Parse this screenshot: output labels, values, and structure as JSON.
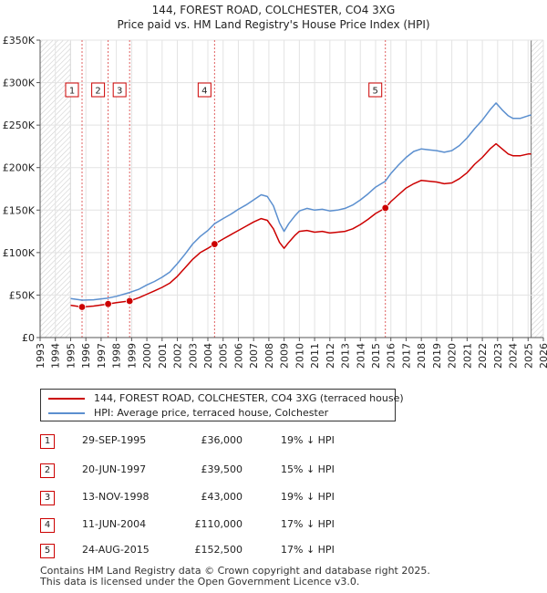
{
  "chart_data": {
    "type": "line",
    "title": "144, FOREST ROAD, COLCHESTER, CO4 3XG",
    "subtitle": "Price paid vs. HM Land Registry's House Price Index (HPI)",
    "xlabel": "",
    "ylabel": "",
    "xlim": [
      1993,
      2026
    ],
    "ylim": [
      0,
      350000
    ],
    "x_ticks": [
      "1993",
      "1994",
      "1995",
      "1996",
      "1997",
      "1998",
      "1999",
      "2000",
      "2001",
      "2002",
      "2003",
      "2004",
      "2005",
      "2006",
      "2007",
      "2008",
      "2009",
      "2010",
      "2011",
      "2012",
      "2013",
      "2014",
      "2015",
      "2016",
      "2017",
      "2018",
      "2019",
      "2020",
      "2021",
      "2022",
      "2023",
      "2024",
      "2025",
      "2026"
    ],
    "y_ticks": [
      {
        "value": 0,
        "label": "£0"
      },
      {
        "value": 50000,
        "label": "£50K"
      },
      {
        "value": 100000,
        "label": "£100K"
      },
      {
        "value": 150000,
        "label": "£150K"
      },
      {
        "value": 200000,
        "label": "£200K"
      },
      {
        "value": 250000,
        "label": "£250K"
      },
      {
        "value": 300000,
        "label": "£300K"
      },
      {
        "value": 350000,
        "label": "£350K"
      }
    ],
    "hatched_regions": [
      [
        1993,
        1995.0
      ],
      [
        2025.2,
        2026
      ]
    ],
    "series": [
      {
        "name": "144, FOREST ROAD, COLCHESTER, CO4 3XG (terraced house)",
        "color": "#cc0000",
        "x": [
          1995.0,
          1995.75,
          1996.5,
          1997.46,
          1998.0,
          1998.87,
          1999.5,
          2000.0,
          2000.5,
          2001.0,
          2001.5,
          2002.0,
          2002.5,
          2003.0,
          2003.5,
          2004.0,
          2004.44,
          2005.0,
          2005.5,
          2006.0,
          2006.5,
          2007.0,
          2007.5,
          2007.9,
          2008.3,
          2008.7,
          2009.0,
          2009.3,
          2009.7,
          2010.0,
          2010.5,
          2011.0,
          2011.5,
          2012.0,
          2012.5,
          2013.0,
          2013.5,
          2014.0,
          2014.5,
          2015.0,
          2015.64,
          2016.0,
          2016.5,
          2017.0,
          2017.5,
          2018.0,
          2018.5,
          2019.0,
          2019.5,
          2020.0,
          2020.5,
          2021.0,
          2021.5,
          2022.0,
          2022.5,
          2022.9,
          2023.3,
          2023.7,
          2024.0,
          2024.5,
          2025.0,
          2025.2
        ],
        "values": [
          38000,
          36000,
          37000,
          39500,
          41000,
          43000,
          47000,
          51000,
          55000,
          59000,
          64000,
          72000,
          82000,
          92000,
          100000,
          105000,
          110000,
          116000,
          121000,
          126000,
          131000,
          136000,
          140000,
          138000,
          128000,
          112000,
          105000,
          112000,
          120000,
          125000,
          126000,
          124000,
          125000,
          123000,
          124000,
          125000,
          128000,
          133000,
          139000,
          146000,
          152500,
          160000,
          168000,
          176000,
          181000,
          185000,
          184000,
          183000,
          181000,
          182000,
          187000,
          194000,
          204000,
          212000,
          222000,
          228000,
          222000,
          216000,
          214000,
          214000,
          216000,
          216000
        ]
      },
      {
        "name": "HPI: Average price, terraced house, Colchester",
        "color": "#5b8fcf",
        "x": [
          1995.0,
          1995.75,
          1996.5,
          1997.46,
          1998.0,
          1998.87,
          1999.5,
          2000.0,
          2000.5,
          2001.0,
          2001.5,
          2002.0,
          2002.5,
          2003.0,
          2003.5,
          2004.0,
          2004.44,
          2005.0,
          2005.5,
          2006.0,
          2006.5,
          2007.0,
          2007.5,
          2007.9,
          2008.3,
          2008.7,
          2009.0,
          2009.3,
          2009.7,
          2010.0,
          2010.5,
          2011.0,
          2011.5,
          2012.0,
          2012.5,
          2013.0,
          2013.5,
          2014.0,
          2014.5,
          2015.0,
          2015.64,
          2016.0,
          2016.5,
          2017.0,
          2017.5,
          2018.0,
          2018.5,
          2019.0,
          2019.5,
          2020.0,
          2020.5,
          2021.0,
          2021.5,
          2022.0,
          2022.5,
          2022.9,
          2023.3,
          2023.7,
          2024.0,
          2024.5,
          2025.0,
          2025.2
        ],
        "values": [
          46000,
          44000,
          44500,
          46500,
          48500,
          53000,
          57000,
          62000,
          66000,
          71000,
          77000,
          87000,
          98000,
          110000,
          119000,
          126000,
          134000,
          140000,
          145000,
          151000,
          156000,
          162000,
          168000,
          166000,
          155000,
          135000,
          125000,
          134000,
          143000,
          149000,
          152000,
          150000,
          151000,
          149000,
          150000,
          152000,
          156000,
          162000,
          169000,
          177000,
          184000,
          193000,
          203000,
          212000,
          219000,
          222000,
          221000,
          220000,
          218000,
          220000,
          226000,
          235000,
          246000,
          256000,
          268000,
          276000,
          268000,
          261000,
          258000,
          258000,
          261000,
          262000
        ]
      }
    ],
    "sale_markers": [
      {
        "label": "1",
        "x": 1995.75,
        "value": 36000
      },
      {
        "label": "2",
        "x": 1997.46,
        "value": 39500
      },
      {
        "label": "3",
        "x": 1998.87,
        "value": 43000
      },
      {
        "label": "4",
        "x": 2004.44,
        "value": 110000
      },
      {
        "label": "5",
        "x": 2015.64,
        "value": 152500
      }
    ]
  },
  "transactions": [
    {
      "num": "1",
      "date": "29-SEP-1995",
      "price": "£36,000",
      "hpi": "19% ↓ HPI"
    },
    {
      "num": "2",
      "date": "20-JUN-1997",
      "price": "£39,500",
      "hpi": "15% ↓ HPI"
    },
    {
      "num": "3",
      "date": "13-NOV-1998",
      "price": "£43,000",
      "hpi": "19% ↓ HPI"
    },
    {
      "num": "4",
      "date": "11-JUN-2004",
      "price": "£110,000",
      "hpi": "17% ↓ HPI"
    },
    {
      "num": "5",
      "date": "24-AUG-2015",
      "price": "£152,500",
      "hpi": "17% ↓ HPI"
    }
  ],
  "footer": {
    "line1": "Contains HM Land Registry data © Crown copyright and database right 2025.",
    "line2": "This data is licensed under the Open Government Licence v3.0."
  }
}
